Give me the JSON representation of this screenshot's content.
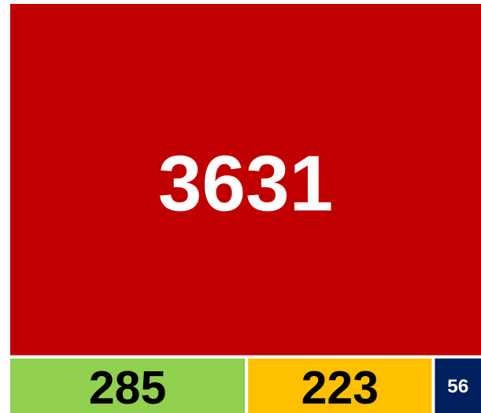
{
  "chart_data": {
    "type": "treemap",
    "values": [
      3631,
      285,
      223,
      56
    ],
    "colors": [
      "#c00000",
      "#92d050",
      "#ffc000",
      "#002060"
    ]
  }
}
